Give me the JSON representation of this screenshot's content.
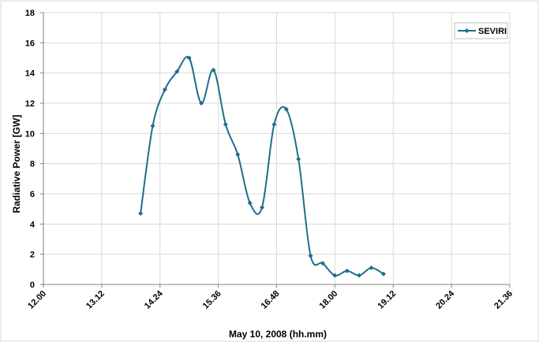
{
  "chart_data": {
    "type": "line",
    "title": "",
    "xlabel": "May 10, 2008 (hh.mm)",
    "ylabel": "Radiative Power [GW]",
    "x_tick_labels": [
      "12.00",
      "13.12",
      "14.24",
      "15.36",
      "16.48",
      "18.00",
      "19.12",
      "20.24",
      "21.36"
    ],
    "x_ticks_minutes": [
      720,
      792,
      864,
      936,
      1008,
      1080,
      1152,
      1224,
      1296
    ],
    "xlim_minutes": [
      720,
      1296
    ],
    "y_ticks": [
      0,
      2,
      4,
      6,
      8,
      10,
      12,
      14,
      16,
      18
    ],
    "ylim": [
      0,
      18
    ],
    "grid": true,
    "smooth": true,
    "legend_position": "top-right",
    "series": [
      {
        "name": "SEVIRI",
        "color": "#1F6E8C",
        "x_minutes": [
          840,
          855,
          870,
          885,
          900,
          915,
          930,
          945,
          960,
          975,
          990,
          1005,
          1020,
          1035,
          1050,
          1065,
          1080,
          1095,
          1110,
          1125,
          1140
        ],
        "values": [
          4.7,
          10.5,
          12.9,
          14.1,
          15.0,
          12.0,
          14.2,
          10.6,
          8.6,
          5.4,
          5.1,
          10.6,
          11.6,
          8.3,
          1.9,
          1.4,
          0.6,
          0.9,
          0.6,
          1.1,
          0.7
        ]
      }
    ]
  }
}
